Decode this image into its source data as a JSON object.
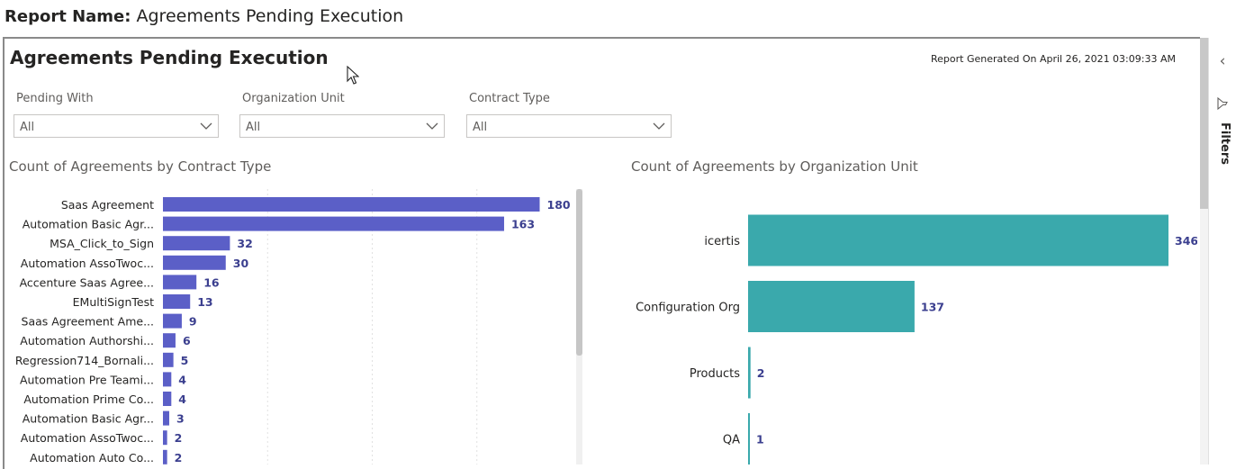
{
  "report": {
    "name_label": "Report Name:",
    "name_value": "Agreements Pending Execution"
  },
  "page": {
    "title": "Agreements Pending Execution",
    "generated": "Report Generated On April 26, 2021 03:09:33 AM"
  },
  "filters_pane": {
    "label": "Filters",
    "collapse_icon": "chevron-left-icon",
    "filter_icon": "funnel-icon"
  },
  "slicers": [
    {
      "label": "Pending With",
      "value": "All"
    },
    {
      "label": "Organization Unit",
      "value": "All"
    },
    {
      "label": "Contract Type",
      "value": "All"
    }
  ],
  "colors": {
    "contract_bar": "#5b5fc7",
    "org_bar": "#3aa9ac",
    "data_label": "#3b3f8f"
  },
  "chart_data": [
    {
      "type": "bar",
      "orientation": "horizontal",
      "title": "Count of Agreements by Contract Type",
      "categories": [
        "Saas Agreement",
        "Automation Basic Agr...",
        "MSA_Click_to_Sign",
        "Automation AssoTwoc...",
        "Accenture Saas Agree...",
        "EMultiSignTest",
        "Saas Agreement Ame...",
        "Automation Authorshi...",
        "Regression714_Bornali...",
        "Automation Pre Teami...",
        "Automation Prime Co...",
        "Automation Basic Agr...",
        "Automation AssoTwoc...",
        "Automation Auto Co..."
      ],
      "values": [
        180,
        163,
        32,
        30,
        16,
        13,
        9,
        6,
        5,
        4,
        4,
        3,
        2,
        2
      ],
      "xlim": [
        0,
        200
      ],
      "grid": true,
      "data_labels": true
    },
    {
      "type": "bar",
      "orientation": "horizontal",
      "title": "Count of Agreements by Organization Unit",
      "categories": [
        "icertis",
        "Configuration Org",
        "Products",
        "QA"
      ],
      "values": [
        346,
        137,
        2,
        1
      ],
      "xlim": [
        0,
        346
      ],
      "grid": false,
      "data_labels": true
    }
  ]
}
